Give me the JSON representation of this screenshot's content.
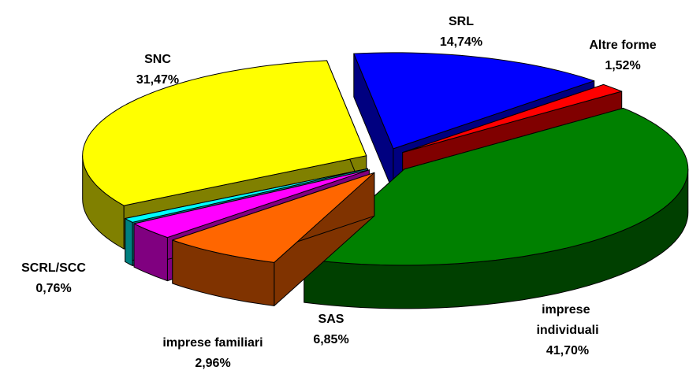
{
  "chart_data": {
    "type": "pie",
    "categories": [
      "SRL",
      "Altre forme",
      "imprese individuali",
      "SAS",
      "imprese familiari",
      "SCRL/SCC",
      "SNC"
    ],
    "values": [
      14.74,
      1.52,
      41.7,
      6.85,
      2.96,
      0.76,
      31.47
    ],
    "value_labels": [
      "14,74%",
      "1,52%",
      "41,70%",
      "6,85%",
      "2,96%",
      "0,76%",
      "31,47%"
    ],
    "colors": [
      "#0000ff",
      "#ff0000",
      "#008000",
      "#ff6600",
      "#ff00ff",
      "#00ffff",
      "#ffff00"
    ]
  }
}
